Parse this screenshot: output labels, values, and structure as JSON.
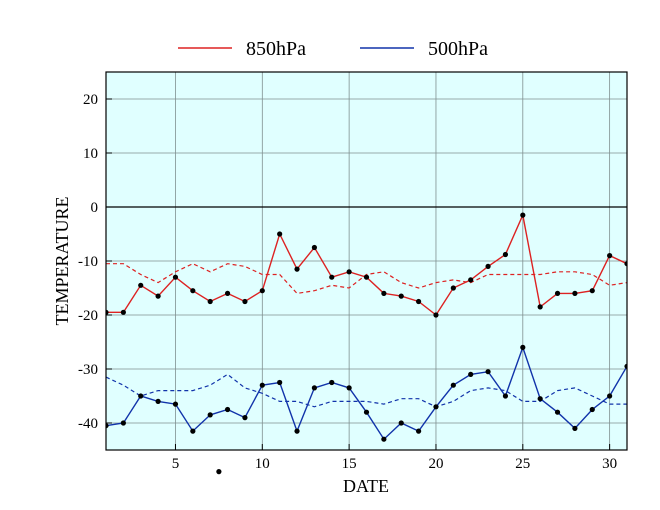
{
  "chart_data": {
    "type": "line",
    "xlabel": "DATE",
    "ylabel": "TEMPERATURE",
    "xlim": [
      1,
      31
    ],
    "ylim": [
      -45,
      25
    ],
    "xticks": [
      5,
      10,
      15,
      20,
      25,
      30
    ],
    "yticks": [
      20,
      10,
      0,
      -10,
      -20,
      -30,
      -40
    ],
    "grid": true,
    "legend_position": "top",
    "x": [
      1,
      2,
      3,
      4,
      5,
      6,
      7,
      8,
      9,
      10,
      11,
      12,
      13,
      14,
      15,
      16,
      17,
      18,
      19,
      20,
      21,
      22,
      23,
      24,
      25,
      26,
      27,
      28,
      29,
      30,
      31
    ],
    "series": [
      {
        "name": "850hPa",
        "color": "#dd2222",
        "style": "solid",
        "markers": true,
        "values": [
          -19.5,
          -19.5,
          -14.5,
          -16.5,
          -13,
          -15.5,
          -17.5,
          -16,
          -17.5,
          -15.5,
          -5,
          -11.5,
          -7.5,
          -13,
          -12,
          -13,
          -16,
          -16.5,
          -17.5,
          -20,
          -15,
          -13.5,
          -11,
          -8.8,
          -1.5,
          -18.5,
          -16,
          -16,
          -15.5,
          -9,
          -10.5
        ]
      },
      {
        "name": "500hPa",
        "color": "#1133aa",
        "style": "solid",
        "markers": true,
        "values": [
          -40.5,
          -40,
          -35,
          -36,
          -36.5,
          -41.5,
          -38.5,
          -37.5,
          -39,
          -33,
          -32.5,
          -41.5,
          -33.5,
          -32.5,
          -33.5,
          -38,
          -43,
          -40,
          -41.5,
          -37,
          -33,
          -31,
          -30.5,
          -35,
          -26,
          -35.5,
          -38,
          -41,
          -37.5,
          -35,
          -29.5
        ]
      },
      {
        "name": "",
        "color": "#dd2222",
        "style": "dashed",
        "markers": false,
        "values": [
          -10.5,
          -10.5,
          -12.5,
          -14,
          -12,
          -10.5,
          -12,
          -10.5,
          -11,
          -12.5,
          -12.5,
          -16,
          -15.5,
          -14.5,
          -15,
          -12.5,
          -12,
          -14,
          -15,
          -14,
          -13.5,
          -14,
          -12.5,
          -12.5,
          -12.5,
          -12.5,
          -12,
          -12,
          -12.5,
          -14.5,
          -14
        ]
      },
      {
        "name": "",
        "color": "#1133aa",
        "style": "dashed",
        "markers": false,
        "values": [
          -31.5,
          -33,
          -35,
          -34,
          -34,
          -34,
          -33,
          -31,
          -33.5,
          -34.5,
          -36,
          -36,
          -37,
          -36,
          -36,
          -36,
          -36.5,
          -35.5,
          -35.5,
          -37,
          -36,
          -34,
          -33.5,
          -34,
          -36,
          -36,
          -34,
          -33.5,
          -35,
          -36.5,
          -36.5
        ]
      }
    ],
    "annotations": [
      {
        "x": 7.5,
        "y": -49
      }
    ],
    "colors": {
      "plot_background": "#e0ffff",
      "grid": "#7f8f8f",
      "zero_line": "#000000"
    }
  }
}
